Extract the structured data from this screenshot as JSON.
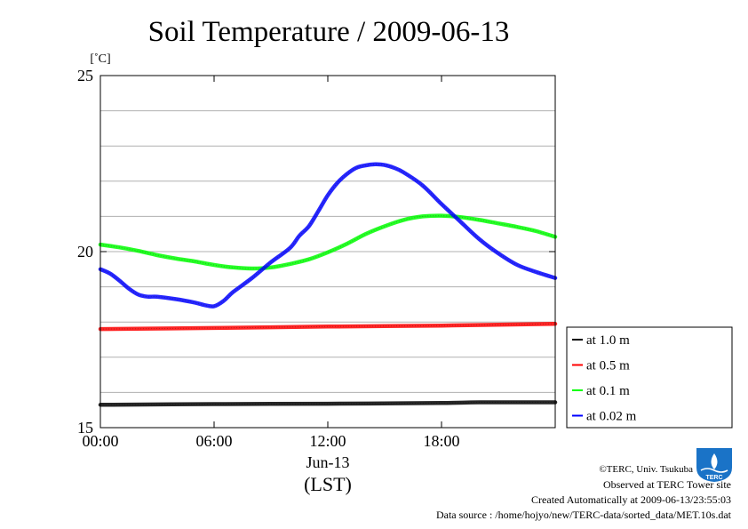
{
  "chart_data": {
    "type": "line",
    "title": "Soil Temperature / 2009-06-13",
    "yunit": "[˚C]",
    "ylim": [
      15,
      25
    ],
    "yticks": [
      15,
      20,
      25
    ],
    "y_minor_grid": [
      16,
      17,
      18,
      19,
      21,
      22,
      23,
      24
    ],
    "xlim": [
      0,
      24
    ],
    "xticks": [
      {
        "value": 0,
        "label": "00:00"
      },
      {
        "value": 6,
        "label": "06:00"
      },
      {
        "value": 12,
        "label": "12:00"
      },
      {
        "value": 18,
        "label": "18:00"
      }
    ],
    "xlabel_date": "Jun-13",
    "xlabel": "(LST)",
    "legend": "right",
    "series": [
      {
        "name": "at 1.0 m",
        "color": "#000000",
        "x": [
          0,
          6,
          12,
          18,
          20,
          24
        ],
        "y": [
          15.65,
          15.67,
          15.68,
          15.7,
          15.72,
          15.72
        ]
      },
      {
        "name": "at 0.5 m",
        "color": "#ff0000",
        "x": [
          0,
          6,
          12,
          18,
          24
        ],
        "y": [
          17.8,
          17.83,
          17.87,
          17.9,
          17.95
        ]
      },
      {
        "name": "at 0.1 m",
        "color": "#00ff00",
        "x": [
          0,
          1,
          2,
          3,
          4,
          5,
          6,
          7,
          8,
          9,
          10,
          11,
          12,
          13,
          14,
          15,
          16,
          17,
          18,
          19,
          20,
          21,
          22,
          23,
          24
        ],
        "y": [
          20.2,
          20.12,
          20.02,
          19.9,
          19.8,
          19.72,
          19.62,
          19.55,
          19.52,
          19.55,
          19.65,
          19.78,
          19.98,
          20.22,
          20.5,
          20.72,
          20.9,
          21.0,
          21.02,
          20.98,
          20.9,
          20.8,
          20.7,
          20.58,
          20.42
        ]
      },
      {
        "name": "at 0.02 m",
        "color": "#0000ff",
        "x": [
          0,
          0.5,
          1,
          1.5,
          2,
          2.5,
          3,
          4,
          5,
          5.5,
          6,
          6.5,
          7,
          8,
          9,
          10,
          10.5,
          11,
          11.5,
          12,
          12.5,
          13,
          13.5,
          14,
          14.5,
          15,
          15.5,
          16,
          17,
          18,
          19,
          20,
          21,
          22,
          23,
          24
        ],
        "y": [
          19.5,
          19.38,
          19.18,
          18.95,
          18.78,
          18.72,
          18.72,
          18.65,
          18.55,
          18.48,
          18.45,
          18.6,
          18.85,
          19.25,
          19.7,
          20.1,
          20.45,
          20.72,
          21.15,
          21.6,
          21.95,
          22.2,
          22.38,
          22.45,
          22.48,
          22.46,
          22.38,
          22.25,
          21.88,
          21.35,
          20.85,
          20.35,
          19.95,
          19.62,
          19.42,
          19.25
        ]
      }
    ]
  },
  "credits": {
    "copyright": "©TERC, Univ. Tsukuba",
    "site": "Observed at TERC Tower site",
    "created": "Created Automatically at 2009-06-13/23:55:03",
    "source": "Data source : /home/hojyo/new/TERC-data/sorted_data/MET.10s.dat",
    "logo_text": "TERC"
  }
}
